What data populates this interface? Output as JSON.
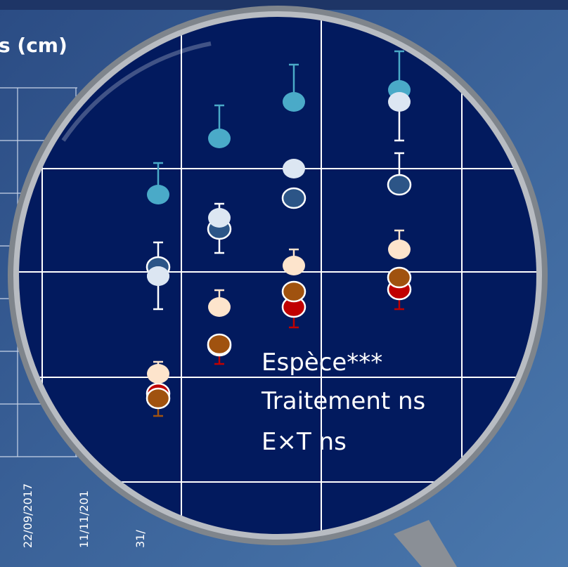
{
  "header": {
    "title": "s (cm)"
  },
  "x_axis": {
    "labels": [
      "22/09/2017",
      "11/11/201",
      "31/"
    ]
  },
  "annotation": {
    "lines": [
      "Espèce***",
      "Traitement ns",
      "E×T ns"
    ]
  }
}
